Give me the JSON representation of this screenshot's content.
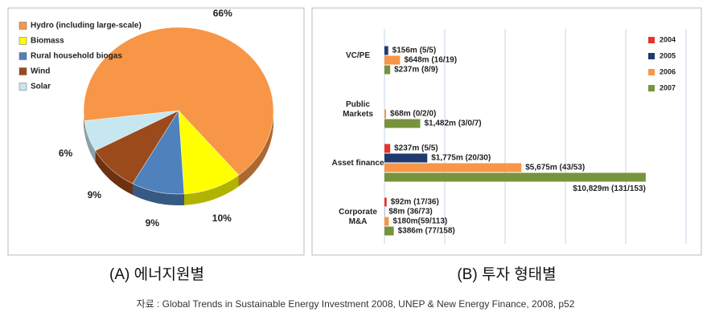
{
  "chart_data": [
    {
      "type": "pie",
      "categories": [
        "Hydro (including large-scale)",
        "Biomass",
        "Rural household biogas",
        "Wind",
        "Solar"
      ],
      "values": [
        66,
        10,
        9,
        9,
        6
      ],
      "value_labels": [
        "66%",
        "10%",
        "9%",
        "9%",
        "6%"
      ],
      "colors": [
        "#f79646",
        "#ffff00",
        "#4f81bd",
        "#9b4a1c",
        "#c6e6f0"
      ],
      "caption": "(A) 에너지원별"
    },
    {
      "type": "hbar",
      "categories": [
        "VC/PE",
        "Public\nMarkets",
        "Asset finance",
        "Corporate\nM&A"
      ],
      "series": [
        {
          "name": "2004",
          "color": "#e8322a",
          "values": [
            null,
            null,
            237,
            92
          ],
          "value_labels": [
            null,
            null,
            "$237m (5/5)",
            "$92m (17/36)"
          ]
        },
        {
          "name": "2005",
          "color": "#1f3a6e",
          "values": [
            156,
            null,
            1775,
            8
          ],
          "value_labels": [
            "$156m (5/5)",
            null,
            "$1,775m (20/30)",
            "$8m (36/73)"
          ]
        },
        {
          "name": "2006",
          "color": "#f79646",
          "values": [
            648,
            68,
            5675,
            180
          ],
          "value_labels": [
            "$648m (16/19)",
            "$68m (0/2/0)",
            "$5,675m (43/53)",
            "$180m(59/113)"
          ]
        },
        {
          "name": "2007",
          "color": "#77933c",
          "values": [
            237,
            1482,
            10829,
            386
          ],
          "value_labels": [
            "$237m (8/9)",
            "$1,482m (3/0/7)",
            "$10,829m (131/153)",
            "$386m (77/158)"
          ]
        }
      ],
      "xlim": [
        0,
        12500
      ],
      "xticks": [
        0,
        2500,
        5000,
        7500,
        10000,
        12500
      ],
      "grid": true,
      "caption": "(B) 투자 형태별"
    }
  ],
  "source": "자료 :  Global Trends in Sustainable Energy Investment 2008, UNEP & New Energy Finance, 2008, p52"
}
